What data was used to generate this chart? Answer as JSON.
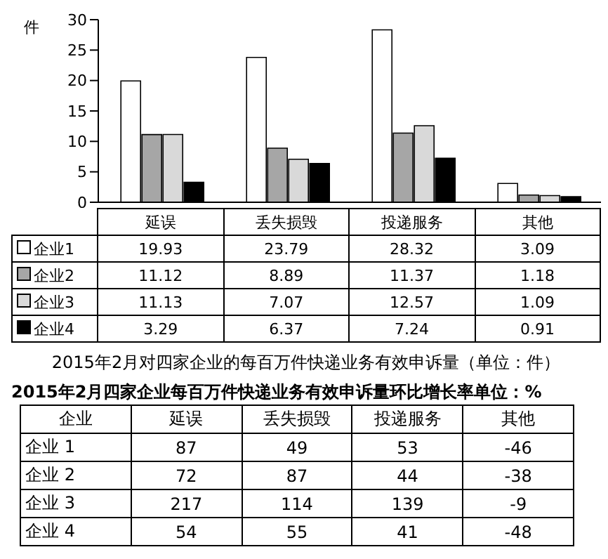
{
  "chart_data": [
    {
      "type": "bar",
      "title": "2015年2月对四家企业的每百万件快递业务有效申诉量（单位：件）",
      "ylabel": "件",
      "categories": [
        "延误",
        "丢失损毁",
        "投递服务",
        "其他"
      ],
      "ylim": [
        0,
        30
      ],
      "yticks": [
        0,
        5,
        10,
        15,
        20,
        25,
        30
      ],
      "legend": "bottom",
      "data_labels": true,
      "series": [
        {
          "name": "企业1",
          "color": "#ffffff",
          "values": [
            19.93,
            23.79,
            28.32,
            3.09
          ]
        },
        {
          "name": "企业2",
          "color": "#a6a6a6",
          "values": [
            11.12,
            8.89,
            11.37,
            1.18
          ]
        },
        {
          "name": "企业3",
          "color": "#d9d9d9",
          "values": [
            11.13,
            7.07,
            12.57,
            1.09
          ]
        },
        {
          "name": "企业4",
          "color": "#000000",
          "values": [
            3.29,
            6.37,
            7.24,
            0.91
          ]
        }
      ]
    },
    {
      "type": "heatmap",
      "title": "2015年2月四家企业每百万件快递业务有效申诉量环比增长率单位：%",
      "ylabel": "企业",
      "categories": [
        "延误",
        "丢失损毁",
        "投递服务",
        "其他"
      ],
      "y_categories": [
        "企业 1",
        "企业 2",
        "企业 3",
        "企业 4"
      ],
      "data_labels": true,
      "cells": [
        [
          87,
          49,
          53,
          -46
        ],
        [
          72,
          87,
          44,
          -38
        ],
        [
          217,
          114,
          139,
          -9
        ],
        [
          54,
          55,
          41,
          -48
        ]
      ]
    }
  ]
}
